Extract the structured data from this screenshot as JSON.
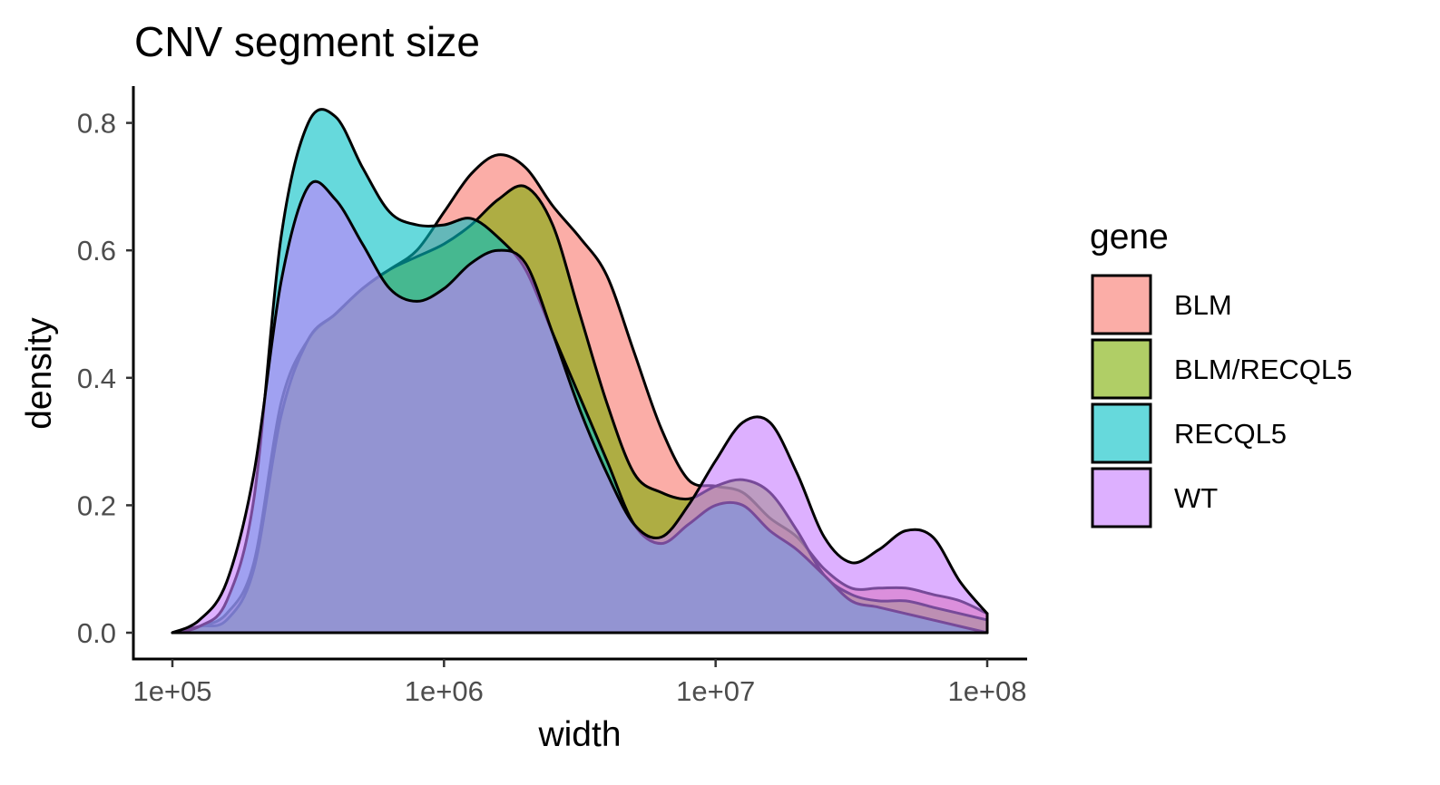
{
  "chart_data": {
    "type": "area",
    "title": "CNV segment size",
    "xlabel": "width",
    "ylabel": "density",
    "x_scale": "log10",
    "xlim": [
      100000,
      100000000
    ],
    "ylim": [
      0,
      0.84
    ],
    "x_ticks": [
      100000,
      1000000,
      10000000,
      100000000
    ],
    "x_tick_labels": [
      "1e+05",
      "1e+06",
      "1e+07",
      "1e+08"
    ],
    "y_ticks": [
      0,
      0.2,
      0.4,
      0.6,
      0.8
    ],
    "y_tick_labels": [
      "0.0",
      "0.2",
      "0.4",
      "0.6",
      "0.8"
    ],
    "grid": false,
    "legend": {
      "title": "gene",
      "position": "right",
      "entries": [
        "BLM",
        "BLM/RECQL5",
        "RECQL5",
        "WT"
      ]
    },
    "x": [
      100000,
      125893,
      158489,
      199526,
      251189,
      316228,
      398107,
      501187,
      630957,
      794328,
      1000000,
      1258925,
      1584893,
      1995262,
      2511886,
      3162278,
      3981072,
      5011872,
      6309573,
      7943282,
      10000000,
      12589254,
      15848932,
      19952623,
      25118864,
      31622777,
      39810717,
      50118723,
      63095734,
      79432823,
      100000000
    ],
    "series": [
      {
        "name": "BLM",
        "color": "#F8766D",
        "values": [
          0.0,
          0.01,
          0.03,
          0.11,
          0.36,
          0.46,
          0.5,
          0.54,
          0.57,
          0.6,
          0.66,
          0.72,
          0.75,
          0.73,
          0.67,
          0.62,
          0.56,
          0.44,
          0.32,
          0.24,
          0.23,
          0.22,
          0.18,
          0.15,
          0.1,
          0.07,
          0.07,
          0.07,
          0.06,
          0.05,
          0.03
        ]
      },
      {
        "name": "BLM/RECQL5",
        "color": "#7CAE00",
        "values": [
          0.0,
          0.01,
          0.02,
          0.1,
          0.34,
          0.46,
          0.5,
          0.54,
          0.57,
          0.59,
          0.61,
          0.64,
          0.68,
          0.7,
          0.64,
          0.5,
          0.36,
          0.25,
          0.22,
          0.21,
          0.23,
          0.24,
          0.22,
          0.16,
          0.09,
          0.06,
          0.05,
          0.05,
          0.04,
          0.03,
          0.02
        ]
      },
      {
        "name": "RECQL5",
        "color": "#00BFC4",
        "values": [
          0.0,
          0.01,
          0.05,
          0.21,
          0.62,
          0.8,
          0.81,
          0.73,
          0.66,
          0.64,
          0.64,
          0.65,
          0.62,
          0.57,
          0.47,
          0.37,
          0.27,
          0.17,
          0.14,
          0.17,
          0.2,
          0.2,
          0.16,
          0.13,
          0.09,
          0.05,
          0.04,
          0.03,
          0.02,
          0.01,
          0.0
        ]
      },
      {
        "name": "WT",
        "color": "#C77CFF",
        "values": [
          0.0,
          0.02,
          0.08,
          0.25,
          0.55,
          0.7,
          0.68,
          0.61,
          0.54,
          0.52,
          0.54,
          0.58,
          0.6,
          0.58,
          0.47,
          0.35,
          0.25,
          0.17,
          0.15,
          0.2,
          0.27,
          0.33,
          0.33,
          0.25,
          0.15,
          0.11,
          0.13,
          0.16,
          0.15,
          0.08,
          0.03
        ]
      }
    ]
  }
}
